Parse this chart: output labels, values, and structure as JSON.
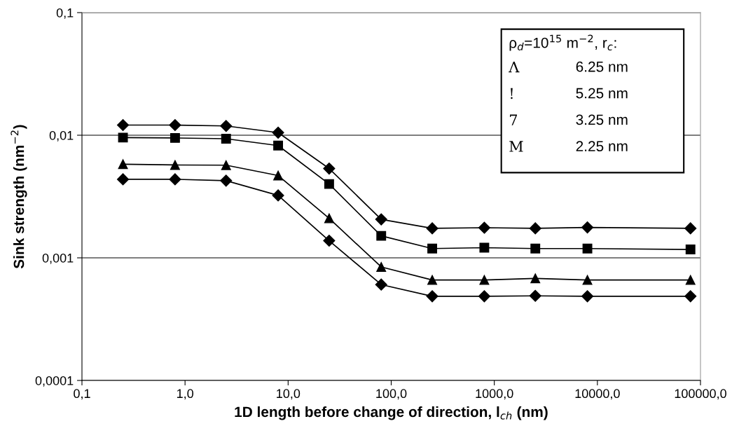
{
  "chart_data": {
    "type": "line",
    "xlabel": "1D length before change of direction, l$_{ch}$ (nm)",
    "ylabel": "Sink strength (nm$^{−2}$)",
    "x": [
      0.25,
      0.8,
      2.5,
      8,
      25,
      80,
      250,
      800,
      2500,
      8000,
      80000
    ],
    "series": [
      {
        "color": "#000000",
        "marker": "diamond",
        "values": [
          0.0121,
          0.0121,
          0.0119,
          0.0105,
          0.00535,
          0.00206,
          0.00174,
          0.00176,
          0.00174,
          0.00177,
          0.00174
        ]
      },
      {
        "color": "#000000",
        "marker": "square",
        "values": [
          0.00957,
          0.0095,
          0.00936,
          0.00824,
          0.004,
          0.00151,
          0.00119,
          0.00121,
          0.00119,
          0.00119,
          0.00117
        ]
      },
      {
        "color": "#000000",
        "marker": "triangle",
        "values": [
          0.0058,
          0.00572,
          0.0057,
          0.00469,
          0.0021,
          0.000843,
          0.00066,
          0.00066,
          0.00068,
          0.00066,
          0.00066
        ]
      },
      {
        "color": "#000000",
        "marker": "diamond",
        "values": [
          0.00437,
          0.00437,
          0.00426,
          0.00323,
          0.00138,
          0.000605,
          0.000486,
          0.000486,
          0.00049,
          0.000486,
          0.000486
        ]
      }
    ],
    "log": "xy",
    "xlim": [
      0.1,
      100000
    ],
    "xticks": [
      {
        "value": 0.1,
        "label": "0,1"
      },
      {
        "value": 1,
        "label": "1,0"
      },
      {
        "value": 10,
        "label": "10,0"
      },
      {
        "value": 100,
        "label": "100,0"
      },
      {
        "value": 1000,
        "label": "1000,0"
      },
      {
        "value": 10000,
        "label": "10000,0"
      },
      {
        "value": 100000,
        "label": "100000,0"
      }
    ],
    "ylim": [
      0.0001,
      0.1
    ],
    "yticks": [
      {
        "value": 0.0001,
        "label": "0,0001"
      },
      {
        "value": 0.001,
        "label": "0,001"
      },
      {
        "value": 0.01,
        "label": "0,01"
      },
      {
        "value": 0.1,
        "label": "0,1"
      }
    ],
    "grid": "y",
    "line_style": "solid",
    "annotations": [
      "ρ$_{d}$=10$^{15}$ m$^{−2}$, r$_{c}$:",
      "Λ",
      "6.25 nm",
      "!",
      "5.25 nm",
      "7",
      "3.25 nm",
      "M",
      "2.25 nm"
    ]
  }
}
